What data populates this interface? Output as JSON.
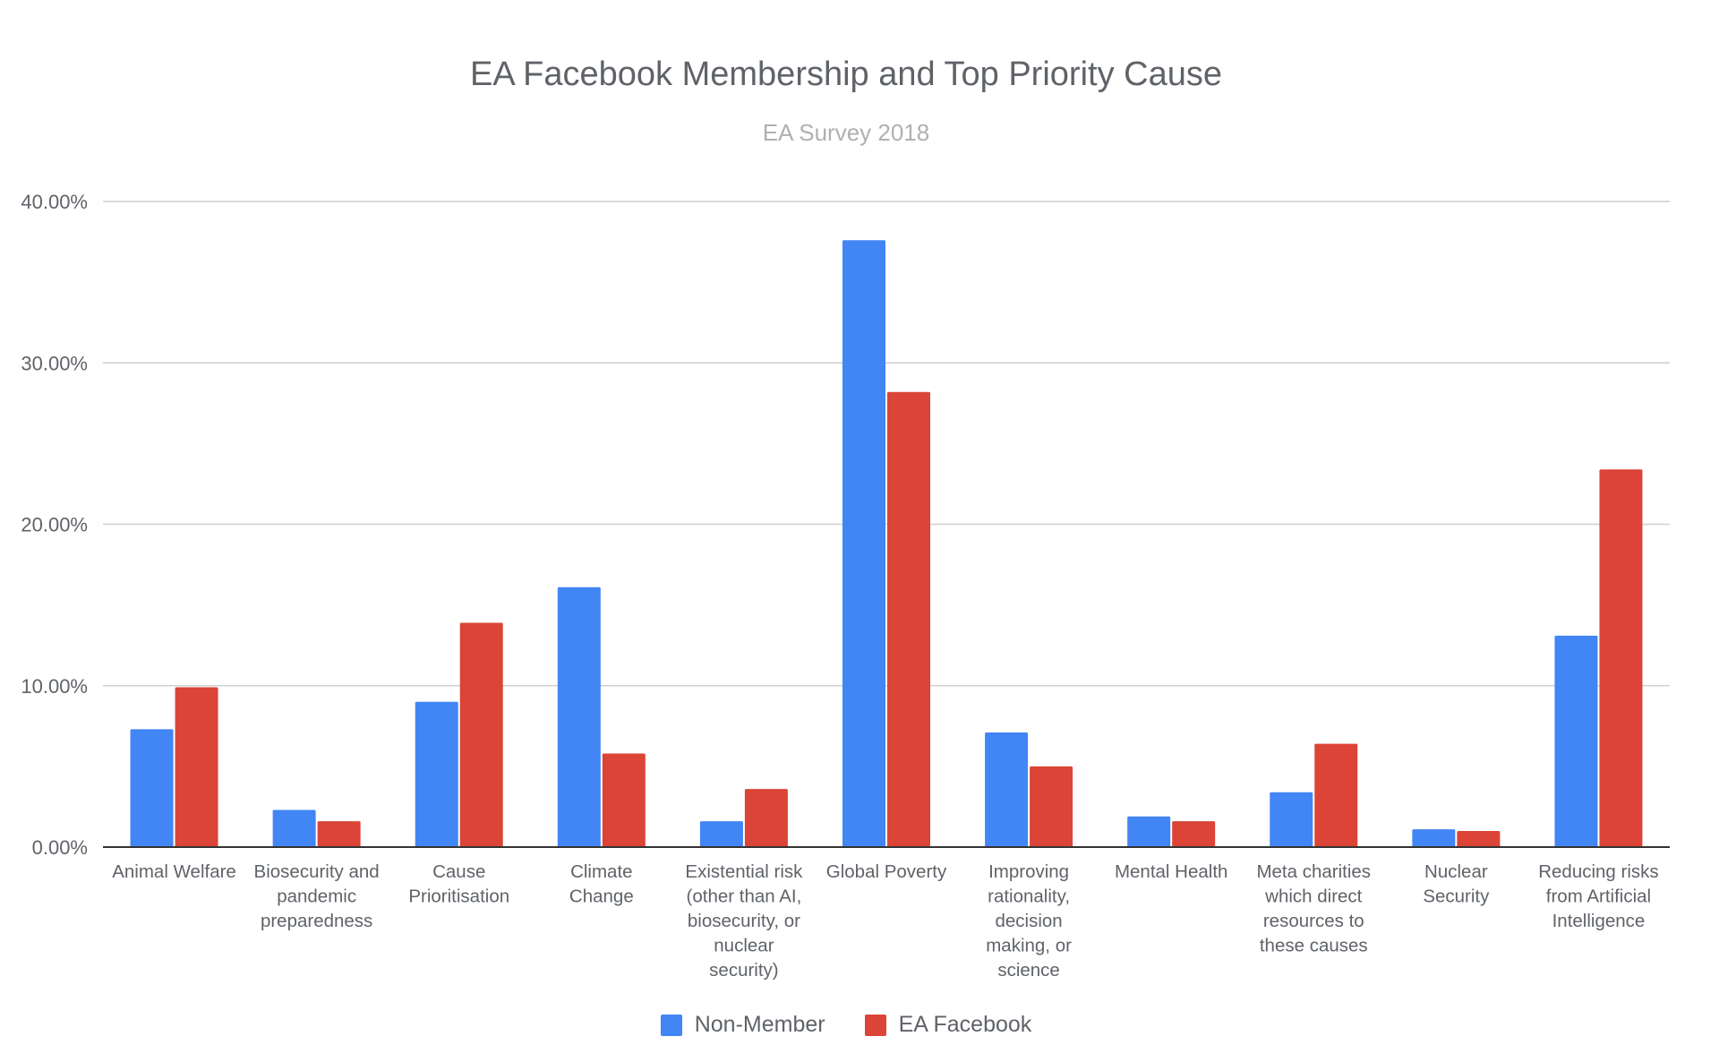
{
  "chart_data": {
    "type": "bar",
    "title": "EA Facebook Membership and Top Priority Cause",
    "subtitle": "EA Survey 2018",
    "xlabel": "",
    "ylabel": "",
    "ylim": [
      0,
      40
    ],
    "yticks": [
      {
        "value": 0,
        "label": "0.00%"
      },
      {
        "value": 10,
        "label": "10.00%"
      },
      {
        "value": 20,
        "label": "20.00%"
      },
      {
        "value": 30,
        "label": "30.00%"
      },
      {
        "value": 40,
        "label": "40.00%"
      }
    ],
    "categories": [
      [
        "Animal Welfare"
      ],
      [
        "Biosecurity and",
        "pandemic",
        "preparedness"
      ],
      [
        "Cause",
        "Prioritisation"
      ],
      [
        "Climate",
        "Change"
      ],
      [
        "Existential risk",
        "(other than AI,",
        "biosecurity, or",
        "nuclear",
        "security)"
      ],
      [
        "Global Poverty"
      ],
      [
        "Improving",
        "rationality,",
        "decision",
        "making, or",
        "science"
      ],
      [
        "Mental Health"
      ],
      [
        "Meta charities",
        "which direct",
        "resources to",
        "these causes"
      ],
      [
        "Nuclear",
        "Security"
      ],
      [
        "Reducing risks",
        "from Artificial",
        "Intelligence"
      ]
    ],
    "series": [
      {
        "name": "Non-Member",
        "color": "#4285f4",
        "values": [
          7.3,
          2.3,
          9.0,
          16.1,
          1.6,
          37.6,
          7.1,
          1.9,
          3.4,
          1.1,
          13.1
        ]
      },
      {
        "name": "EA Facebook",
        "color": "#db4437",
        "values": [
          9.9,
          1.6,
          13.9,
          5.8,
          3.6,
          28.2,
          5.0,
          1.6,
          6.4,
          1.0,
          23.4
        ]
      }
    ],
    "grid": true,
    "legend_position": "bottom"
  }
}
